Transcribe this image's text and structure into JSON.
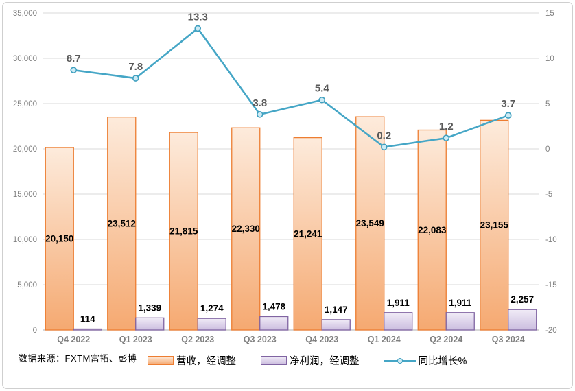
{
  "source_note": "数据来源：FXTM富拓、彭博",
  "legend": {
    "revenue_label": "营收，经调整",
    "profit_label": "净利润，经调整",
    "growth_label": "同比增长%"
  },
  "colors": {
    "revenue_border": "#ED7D31",
    "revenue_fill_top": "#FDEBDC",
    "revenue_fill_bottom": "#F5A971",
    "profit_border": "#8064A2",
    "profit_fill_top": "#F1ECF7",
    "profit_fill_bottom": "#CBBDDF",
    "line": "#45A6C6",
    "marker_fill": "#CDEBF5",
    "marker_stroke": "#3E9FBF",
    "gridline": "#D9D9D9",
    "axis_line": "#BFBFBF",
    "tick_text": "#808080",
    "xlabel_text": "#7F7F7F",
    "bar_label": "#000000",
    "line_label": "#595959"
  },
  "chart_data": {
    "type": "bar",
    "subtype": "combo-bar-line",
    "categories": [
      "Q4 2022",
      "Q1 2023",
      "Q2 2023",
      "Q3 2023",
      "Q4 2023",
      "Q1 2024",
      "Q2 2024",
      "Q3 2024"
    ],
    "series": [
      {
        "name": "营收，经调整",
        "type": "bar",
        "axis": "left",
        "values": [
          20150,
          23512,
          21815,
          22330,
          21241,
          23549,
          22083,
          23155
        ],
        "labels": [
          "20,150",
          "23,512",
          "21,815",
          "22,330",
          "21,241",
          "23,549",
          "22,083",
          "23,155"
        ]
      },
      {
        "name": "净利润，经调整",
        "type": "bar",
        "axis": "left",
        "values": [
          114,
          1339,
          1274,
          1478,
          1147,
          1911,
          1911,
          2257
        ],
        "labels": [
          "114",
          "1,339",
          "1,274",
          "1,478",
          "1,147",
          "1,911",
          "1,911",
          "2,257"
        ]
      },
      {
        "name": "同比增长%",
        "type": "line",
        "axis": "right",
        "values": [
          8.7,
          7.8,
          13.3,
          3.8,
          5.4,
          0.2,
          1.2,
          3.7
        ],
        "labels": [
          "8.7",
          "7.8",
          "13.3",
          "3.8",
          "5.4",
          "0.2",
          "1.2",
          "3.7"
        ]
      }
    ],
    "left_axis": {
      "min": 0,
      "max": 35000,
      "step": 5000,
      "tick_labels": [
        "0",
        "5,000",
        "10,000",
        "15,000",
        "20,000",
        "25,000",
        "30,000",
        "35,000"
      ]
    },
    "right_axis": {
      "min": -20,
      "max": 15,
      "step": 5,
      "tick_labels": [
        "-20",
        "-15",
        "-10",
        "-5",
        "0",
        "5",
        "10",
        "15"
      ]
    },
    "grid": true,
    "legend_position": "bottom",
    "title": "",
    "xlabel": "",
    "ylabel": ""
  }
}
